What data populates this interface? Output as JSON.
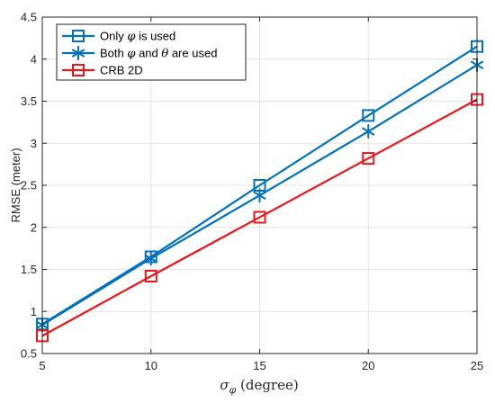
{
  "chart_data": {
    "type": "line",
    "x": [
      5,
      10,
      15,
      20,
      25
    ],
    "xlabel": "σ_φ (degree)",
    "ylabel": "RMSE (meter)",
    "xlim": [
      5,
      25
    ],
    "ylim": [
      0.5,
      4.5
    ],
    "xticks": [
      "5",
      "10",
      "15",
      "20",
      "25"
    ],
    "yticks": [
      "0.5",
      "1",
      "1.5",
      "2",
      "2.5",
      "3",
      "3.5",
      "4",
      "4.5"
    ],
    "grid": true,
    "legend_position": "top-left",
    "series": [
      {
        "name": "Only φ is used",
        "marker": "square",
        "color": "#0072BD",
        "values": [
          0.85,
          1.65,
          2.5,
          3.33,
          4.15
        ]
      },
      {
        "name": "Both φ and θ are used",
        "marker": "asterisk",
        "color": "#0072BD",
        "values": [
          0.84,
          1.63,
          2.38,
          3.14,
          3.93
        ]
      },
      {
        "name": "CRB 2D",
        "marker": "square",
        "color": "#E8171C",
        "values": [
          0.71,
          1.42,
          2.12,
          2.82,
          3.52
        ]
      }
    ]
  }
}
